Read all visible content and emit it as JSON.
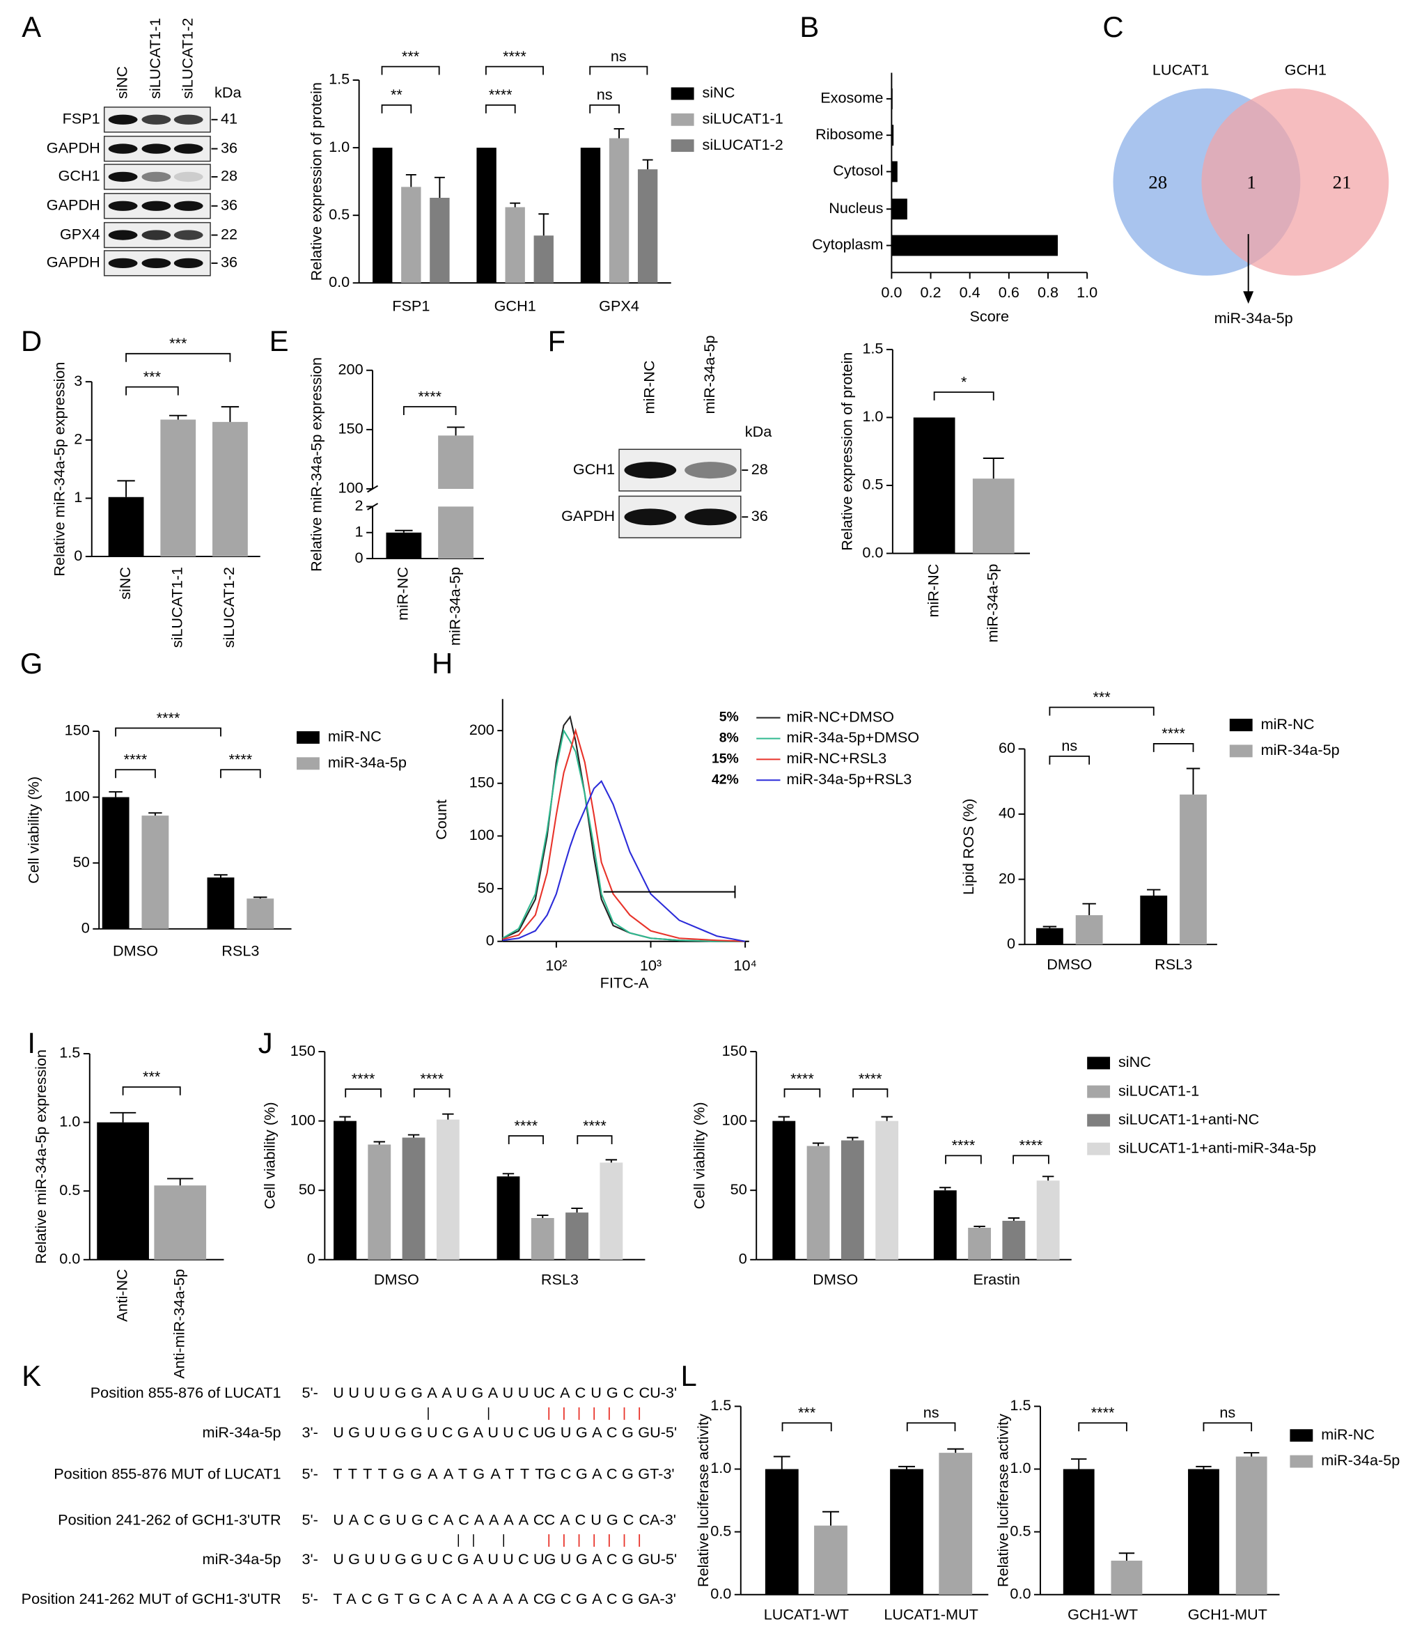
{
  "chart_data": [
    {
      "panel": "A",
      "type": "bar",
      "blot": {
        "lanes": [
          "siNC",
          "siLUCAT1-1",
          "siLUCAT1-2"
        ],
        "unit": "kDa",
        "rows": [
          {
            "protein": "FSP1",
            "kDa": 41
          },
          {
            "protein": "GAPDH",
            "kDa": 36
          },
          {
            "protein": "GCH1",
            "kDa": 28
          },
          {
            "protein": "GAPDH",
            "kDa": 36
          },
          {
            "protein": "GPX4",
            "kDa": 22
          },
          {
            "protein": "GAPDH",
            "kDa": 36
          }
        ]
      },
      "ylabel": "Relative expression of protein",
      "categories": [
        "FSP1",
        "GCH1",
        "GPX4"
      ],
      "series": [
        {
          "name": "siNC",
          "color": "#000000",
          "values": [
            1,
            1,
            1
          ]
        },
        {
          "name": "siLUCAT1-1",
          "color": "#a6a6a6",
          "values": [
            0.71,
            0.56,
            1.07
          ],
          "errors": [
            0.09,
            0.03,
            0.07
          ]
        },
        {
          "name": "siLUCAT1-2",
          "color": "#7f7f7f",
          "values": [
            0.63,
            0.35,
            0.84
          ],
          "errors": [
            0.15,
            0.16,
            0.07
          ]
        }
      ],
      "ylim": [
        0,
        1.5
      ],
      "yticks": [
        {
          "value": 0,
          "label": "0.0"
        },
        0.5,
        {
          "value": 1,
          "label": "1.0"
        },
        1.5
      ],
      "significance": [
        "**",
        "***",
        "****",
        "****",
        "ns",
        "ns"
      ]
    },
    {
      "panel": "B",
      "type": "barh",
      "xlabel": "Score",
      "categories": [
        "Exosome",
        "Ribosome",
        "Cytosol",
        "Nucleus",
        "Cytoplasm"
      ],
      "values": [
        0.005,
        0.01,
        0.03,
        0.08,
        0.85
      ],
      "color": "#000000",
      "xlim": [
        0,
        1
      ],
      "xticks": [
        {
          "value": 0,
          "label": "0.0"
        },
        0.2,
        0.4,
        0.6,
        0.8,
        {
          "value": 1,
          "label": "1.0"
        }
      ]
    },
    {
      "panel": "C",
      "type": "venn",
      "sets": [
        {
          "name": "LUCAT1",
          "color": "#a9c4ee"
        },
        {
          "name": "GCH1",
          "color": "#f3a3a6"
        }
      ],
      "counts": [
        28,
        1,
        21
      ],
      "intersection": "miR-34a-5p"
    },
    {
      "panel": "D",
      "type": "bar",
      "ylabel": "Relative miR-34a-5p expression",
      "categories": [
        "siNC",
        "siLUCAT1-1",
        "siLUCAT1-2"
      ],
      "values": [
        1.02,
        2.35,
        2.31
      ],
      "errors": [
        0.28,
        0.07,
        0.26
      ],
      "colors": [
        "#000000",
        "#a6a6a6",
        "#a6a6a6"
      ],
      "ylim": [
        0,
        3
      ],
      "yticks": [
        0,
        1,
        2,
        3
      ],
      "significance": [
        "***",
        "***"
      ]
    },
    {
      "panel": "E",
      "type": "bar",
      "ylabel": "Relative miR-34a-5p expression",
      "categories": [
        "miR-NC",
        "miR-34a-5p"
      ],
      "values": [
        1,
        145
      ],
      "errors": [
        0.08,
        7
      ],
      "colors": [
        "#000000",
        "#a6a6a6"
      ],
      "ylim": [
        0,
        200
      ],
      "axis_break": [
        2,
        100
      ],
      "yticks": [
        0,
        1,
        2,
        100,
        150,
        200
      ],
      "significance": [
        "****"
      ]
    },
    {
      "panel": "F",
      "type": "bar",
      "blot": {
        "lanes": [
          "miR-NC",
          "miR-34a-5p"
        ],
        "unit": "kDa",
        "rows": [
          {
            "protein": "GCH1",
            "kDa": 28
          },
          {
            "protein": "GAPDH",
            "kDa": 36
          }
        ]
      },
      "ylabel": "Relative expression of protein",
      "categories": [
        "miR-NC",
        "miR-34a-5p"
      ],
      "values": [
        1,
        0.55
      ],
      "errors": [
        null,
        0.15
      ],
      "colors": [
        "#000000",
        "#a6a6a6"
      ],
      "ylim": [
        0,
        1.5
      ],
      "yticks": [
        {
          "value": 0,
          "label": "0.0"
        },
        0.5,
        {
          "value": 1,
          "label": "1.0"
        },
        1.5
      ],
      "significance": [
        "*"
      ]
    },
    {
      "panel": "G",
      "type": "bar",
      "ylabel": "Cell viability (%)",
      "categories": [
        "DMSO",
        "RSL3"
      ],
      "series": [
        {
          "name": "miR-NC",
          "color": "#000000",
          "values": [
            100,
            39
          ],
          "errors": [
            4,
            2
          ]
        },
        {
          "name": "miR-34a-5p",
          "color": "#a6a6a6",
          "values": [
            86,
            23
          ],
          "errors": [
            2,
            1
          ]
        }
      ],
      "ylim": [
        0,
        150
      ],
      "yticks": [
        0,
        50,
        100,
        150
      ],
      "significance": [
        "****",
        "****",
        "****"
      ]
    },
    {
      "panel": "H",
      "type": "line",
      "log_x": true,
      "xlabel": "FITC-A",
      "ylabel": "Count",
      "x": [
        27,
        40,
        60,
        80,
        100,
        120,
        140,
        160,
        200,
        250,
        300,
        400,
        600,
        1000,
        2000,
        5000,
        10000
      ],
      "xlim": [
        27,
        11000
      ],
      "xticks": [
        {
          "value": 100,
          "label": "10²"
        },
        {
          "value": 1000,
          "label": "10³"
        },
        {
          "value": 10000,
          "label": "10⁴"
        }
      ],
      "ylim": [
        0,
        230
      ],
      "yticks": [
        0,
        50,
        100,
        150,
        200
      ],
      "gate": {
        "x": [
          316,
          7800
        ],
        "y": 47
      },
      "series": [
        {
          "name": "miR-NC+DMSO",
          "color": "#222222",
          "percent_label": "5%",
          "values": [
            3,
            10,
            40,
            100,
            170,
            205,
            213,
            190,
            140,
            80,
            40,
            15,
            8,
            3,
            1,
            0,
            0
          ]
        },
        {
          "name": "miR-34a-5p+DMSO",
          "color": "#2fb88f",
          "percent_label": "8%",
          "values": [
            3,
            12,
            45,
            105,
            165,
            200,
            190,
            180,
            140,
            90,
            45,
            18,
            8,
            3,
            1,
            0,
            0
          ]
        },
        {
          "name": "miR-NC+RSL3",
          "color": "#e8332a",
          "percent_label": "15%",
          "values": [
            2,
            6,
            25,
            65,
            120,
            160,
            180,
            200,
            170,
            120,
            75,
            45,
            25,
            10,
            3,
            1,
            0
          ]
        },
        {
          "name": "miR-34a-5p+RSL3",
          "color": "#2b2bd9",
          "percent_label": "42%",
          "values": [
            1,
            3,
            10,
            25,
            45,
            70,
            90,
            105,
            125,
            145,
            152,
            130,
            85,
            45,
            20,
            5,
            0
          ]
        }
      ]
    },
    {
      "type": "bar",
      "ylabel": "Lipid ROS (%)",
      "categories": [
        "DMSO",
        "RSL3"
      ],
      "series": [
        {
          "name": "miR-NC",
          "color": "#000000",
          "values": [
            5,
            15
          ],
          "errors": [
            0.5,
            1.8
          ]
        },
        {
          "name": "miR-34a-5p",
          "color": "#a6a6a6",
          "values": [
            9,
            46
          ],
          "errors": [
            3.5,
            8
          ]
        }
      ],
      "ylim": [
        0,
        60
      ],
      "yticks": [
        0,
        20,
        40,
        60
      ],
      "significance": [
        "ns",
        "****",
        "***"
      ]
    },
    {
      "panel": "I",
      "type": "bar",
      "ylabel": "Relative miR-34a-5p expression",
      "categories": [
        "Anti-NC",
        "Anti-miR-34a-5p"
      ],
      "values": [
        1,
        0.54
      ],
      "errors": [
        0.07,
        0.05
      ],
      "colors": [
        "#000000",
        "#a6a6a6"
      ],
      "ylim": [
        0,
        1.5
      ],
      "yticks": [
        {
          "value": 0,
          "label": "0.0"
        },
        0.5,
        {
          "value": 1,
          "label": "1.0"
        },
        1.5
      ],
      "significance": [
        "***"
      ]
    },
    {
      "panel": "J",
      "type": "bar",
      "series": [
        {
          "name": "siNC",
          "color": "#000000"
        },
        {
          "name": "siLUCAT1-1",
          "color": "#a6a6a6"
        },
        {
          "name": "siLUCAT1-1+anti-NC",
          "color": "#7f7f7f"
        },
        {
          "name": "siLUCAT1-1+anti-miR-34a-5p",
          "color": "#d9d9d9"
        }
      ],
      "subplots": [
        {
          "ylabel": "Cell viability (%)",
          "categories": [
            "DMSO",
            "RSL3"
          ],
          "series": [
            {
              "color": "#000000",
              "values": [
                100,
                60
              ],
              "errors": [
                3,
                2
              ]
            },
            {
              "color": "#a6a6a6",
              "values": [
                83,
                30
              ],
              "errors": [
                2,
                2
              ]
            },
            {
              "color": "#7f7f7f",
              "values": [
                88,
                34
              ],
              "errors": [
                2,
                3
              ]
            },
            {
              "color": "#d9d9d9",
              "values": [
                101,
                70
              ],
              "errors": [
                4,
                2
              ]
            }
          ],
          "ylim": [
            0,
            150
          ],
          "yticks": [
            0,
            50,
            100,
            150
          ],
          "significance": [
            "****",
            "****",
            "****",
            "****"
          ]
        },
        {
          "ylabel": "Cell viability (%)",
          "categories": [
            "DMSO",
            "Erastin"
          ],
          "series": [
            {
              "color": "#000000",
              "values": [
                100,
                50
              ],
              "errors": [
                3,
                2
              ]
            },
            {
              "color": "#a6a6a6",
              "values": [
                82,
                23
              ],
              "errors": [
                2,
                1
              ]
            },
            {
              "color": "#7f7f7f",
              "values": [
                86,
                28
              ],
              "errors": [
                2,
                2
              ]
            },
            {
              "color": "#d9d9d9",
              "values": [
                100,
                57
              ],
              "errors": [
                3,
                3
              ]
            }
          ],
          "ylim": [
            0,
            150
          ],
          "yticks": [
            0,
            50,
            100,
            150
          ],
          "significance": [
            "****",
            "****",
            "****",
            "****"
          ]
        }
      ]
    },
    {
      "panel": "K",
      "type": "alignment",
      "rows": [
        {
          "label": "Position 855-876 of LUCAT1",
          "prefix": "5'-",
          "sequence": "UUUUGGAAUGAUUU",
          "seed": "CACUGCC",
          "suffix": "U-3'"
        },
        {
          "label": "miR-34a-5p",
          "prefix": "3'-",
          "sequence": "UGUUGGUCGAUUCU",
          "seed": "GUGACGG",
          "suffix": "U-5'"
        },
        {
          "label": "Position 855-876 MUT of LUCAT1",
          "prefix": "5'-",
          "sequence": "TTTTGGAATGATTT",
          "seed": "GCGACGG",
          "suffix": "T-3'"
        },
        {
          "label": "Position 241-262 of GCH1-3'UTR",
          "prefix": "5'-",
          "sequence": "UACGUGCACAAAAC",
          "seed": "CACUGCC",
          "suffix": "A-3'"
        },
        {
          "label": "miR-34a-5p",
          "prefix": "3'-",
          "sequence": "UGUUGGUCGAUUCU",
          "seed": "GUGACGG",
          "suffix": "U-5'"
        },
        {
          "label": "Position 241-262 MUT of GCH1-3'UTR",
          "prefix": "5'-",
          "sequence": "TACGTGCACAAAAC",
          "seed": "GCGACGG",
          "suffix": "A-3'"
        }
      ]
    },
    {
      "panel": "L",
      "type": "bar",
      "series": [
        {
          "name": "miR-NC",
          "color": "#000000"
        },
        {
          "name": "miR-34a-5p",
          "color": "#a6a6a6"
        }
      ],
      "subplots": [
        {
          "ylabel": "Relative luciferase activity",
          "categories": [
            "LUCAT1-WT",
            "LUCAT1-MUT"
          ],
          "series": [
            {
              "color": "#000000",
              "values": [
                1,
                1
              ],
              "errors": [
                0.1,
                0.02
              ]
            },
            {
              "color": "#a6a6a6",
              "values": [
                0.55,
                1.13
              ],
              "errors": [
                0.11,
                0.03
              ]
            }
          ],
          "ylim": [
            0,
            1.5
          ],
          "yticks": [
            {
              "value": 0,
              "label": "0.0"
            },
            0.5,
            {
              "value": 1,
              "label": "1.0"
            },
            1.5
          ],
          "significance": [
            "***",
            "ns"
          ]
        },
        {
          "ylabel": "Relative luciferase activity",
          "categories": [
            "GCH1-WT",
            "GCH1-MUT"
          ],
          "series": [
            {
              "color": "#000000",
              "values": [
                1,
                1
              ],
              "errors": [
                0.08,
                0.02
              ]
            },
            {
              "color": "#a6a6a6",
              "values": [
                0.27,
                1.1
              ],
              "errors": [
                0.06,
                0.03
              ]
            }
          ],
          "ylim": [
            0,
            1.5
          ],
          "yticks": [
            {
              "value": 0,
              "label": "0.0"
            },
            0.5,
            {
              "value": 1,
              "label": "1.0"
            },
            1.5
          ],
          "significance": [
            "****",
            "ns"
          ]
        }
      ]
    }
  ]
}
